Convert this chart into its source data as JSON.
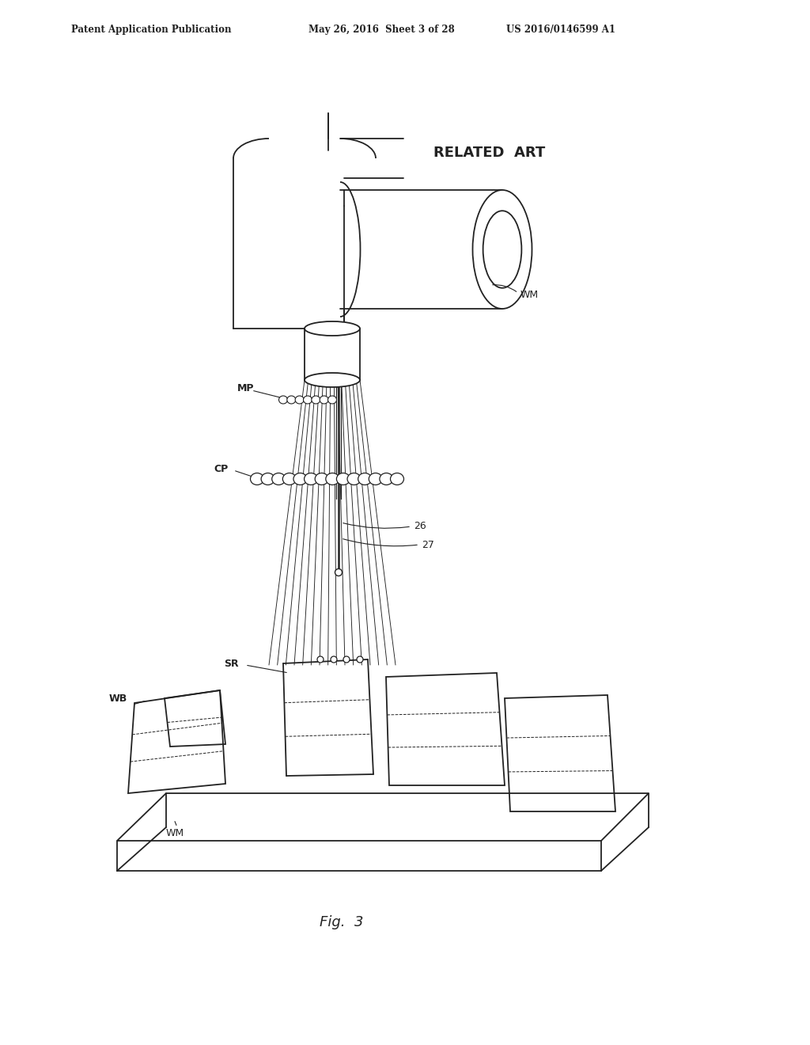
{
  "bg_color": "#ffffff",
  "line_color": "#222222",
  "header_text1": "Patent Application Publication",
  "header_text2": "May 26, 2016  Sheet 3 of 28",
  "header_text3": "US 2016/0146599 A1",
  "related_art": "RELATED  ART",
  "fig_label": "Fig.  3",
  "lw_main": 1.3,
  "lw_thin": 0.7,
  "lw_probe": 0.65
}
